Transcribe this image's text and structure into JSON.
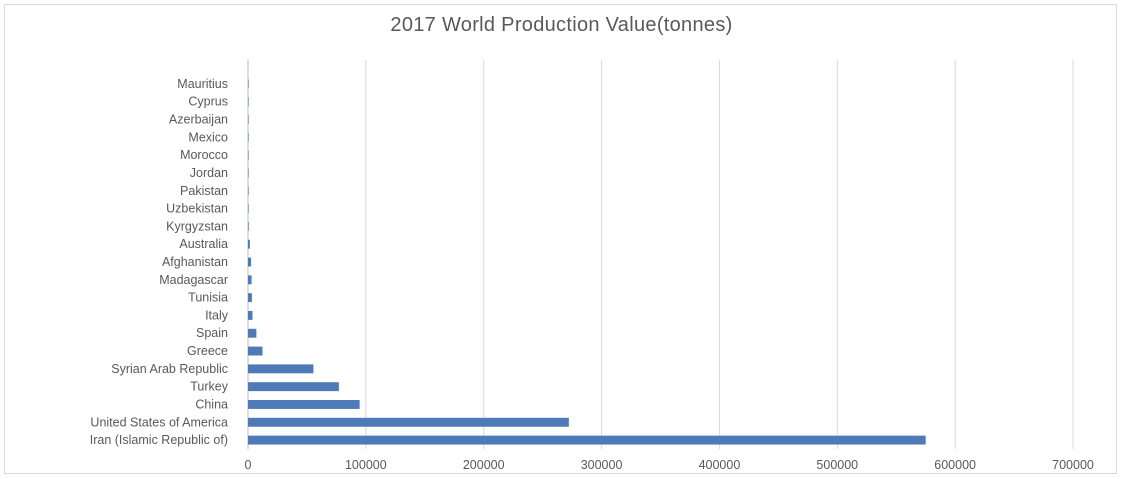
{
  "chart_data": {
    "type": "bar",
    "orientation": "horizontal",
    "title": "2017 World Production Value(tonnes)",
    "xlabel": "",
    "ylabel": "",
    "xlim": [
      0,
      700000
    ],
    "xticks": [
      0,
      100000,
      200000,
      300000,
      400000,
      500000,
      600000,
      700000
    ],
    "grid": true,
    "legend": "none",
    "bar_color": "#4f7ab8",
    "categories": [
      "Iran (Islamic Republic of)",
      "United States of America",
      "China",
      "Turkey",
      "Syrian Arab Republic",
      "Greece",
      "Spain",
      "Italy",
      "Tunisia",
      "Madagascar",
      "Afghanistan",
      "Australia",
      "Kyrgyzstan",
      "Uzbekistan",
      "Pakistan",
      "Jordan",
      "Morocco",
      "Mexico",
      "Azerbaijan",
      "Cyprus",
      "Mauritius"
    ],
    "values": [
      574987,
      272219,
      94719,
      77075,
      55514,
      12289,
      7100,
      3822,
      3300,
      3050,
      2586,
      1573,
      600,
      450,
      300,
      220,
      180,
      110,
      80,
      50,
      10
    ]
  }
}
